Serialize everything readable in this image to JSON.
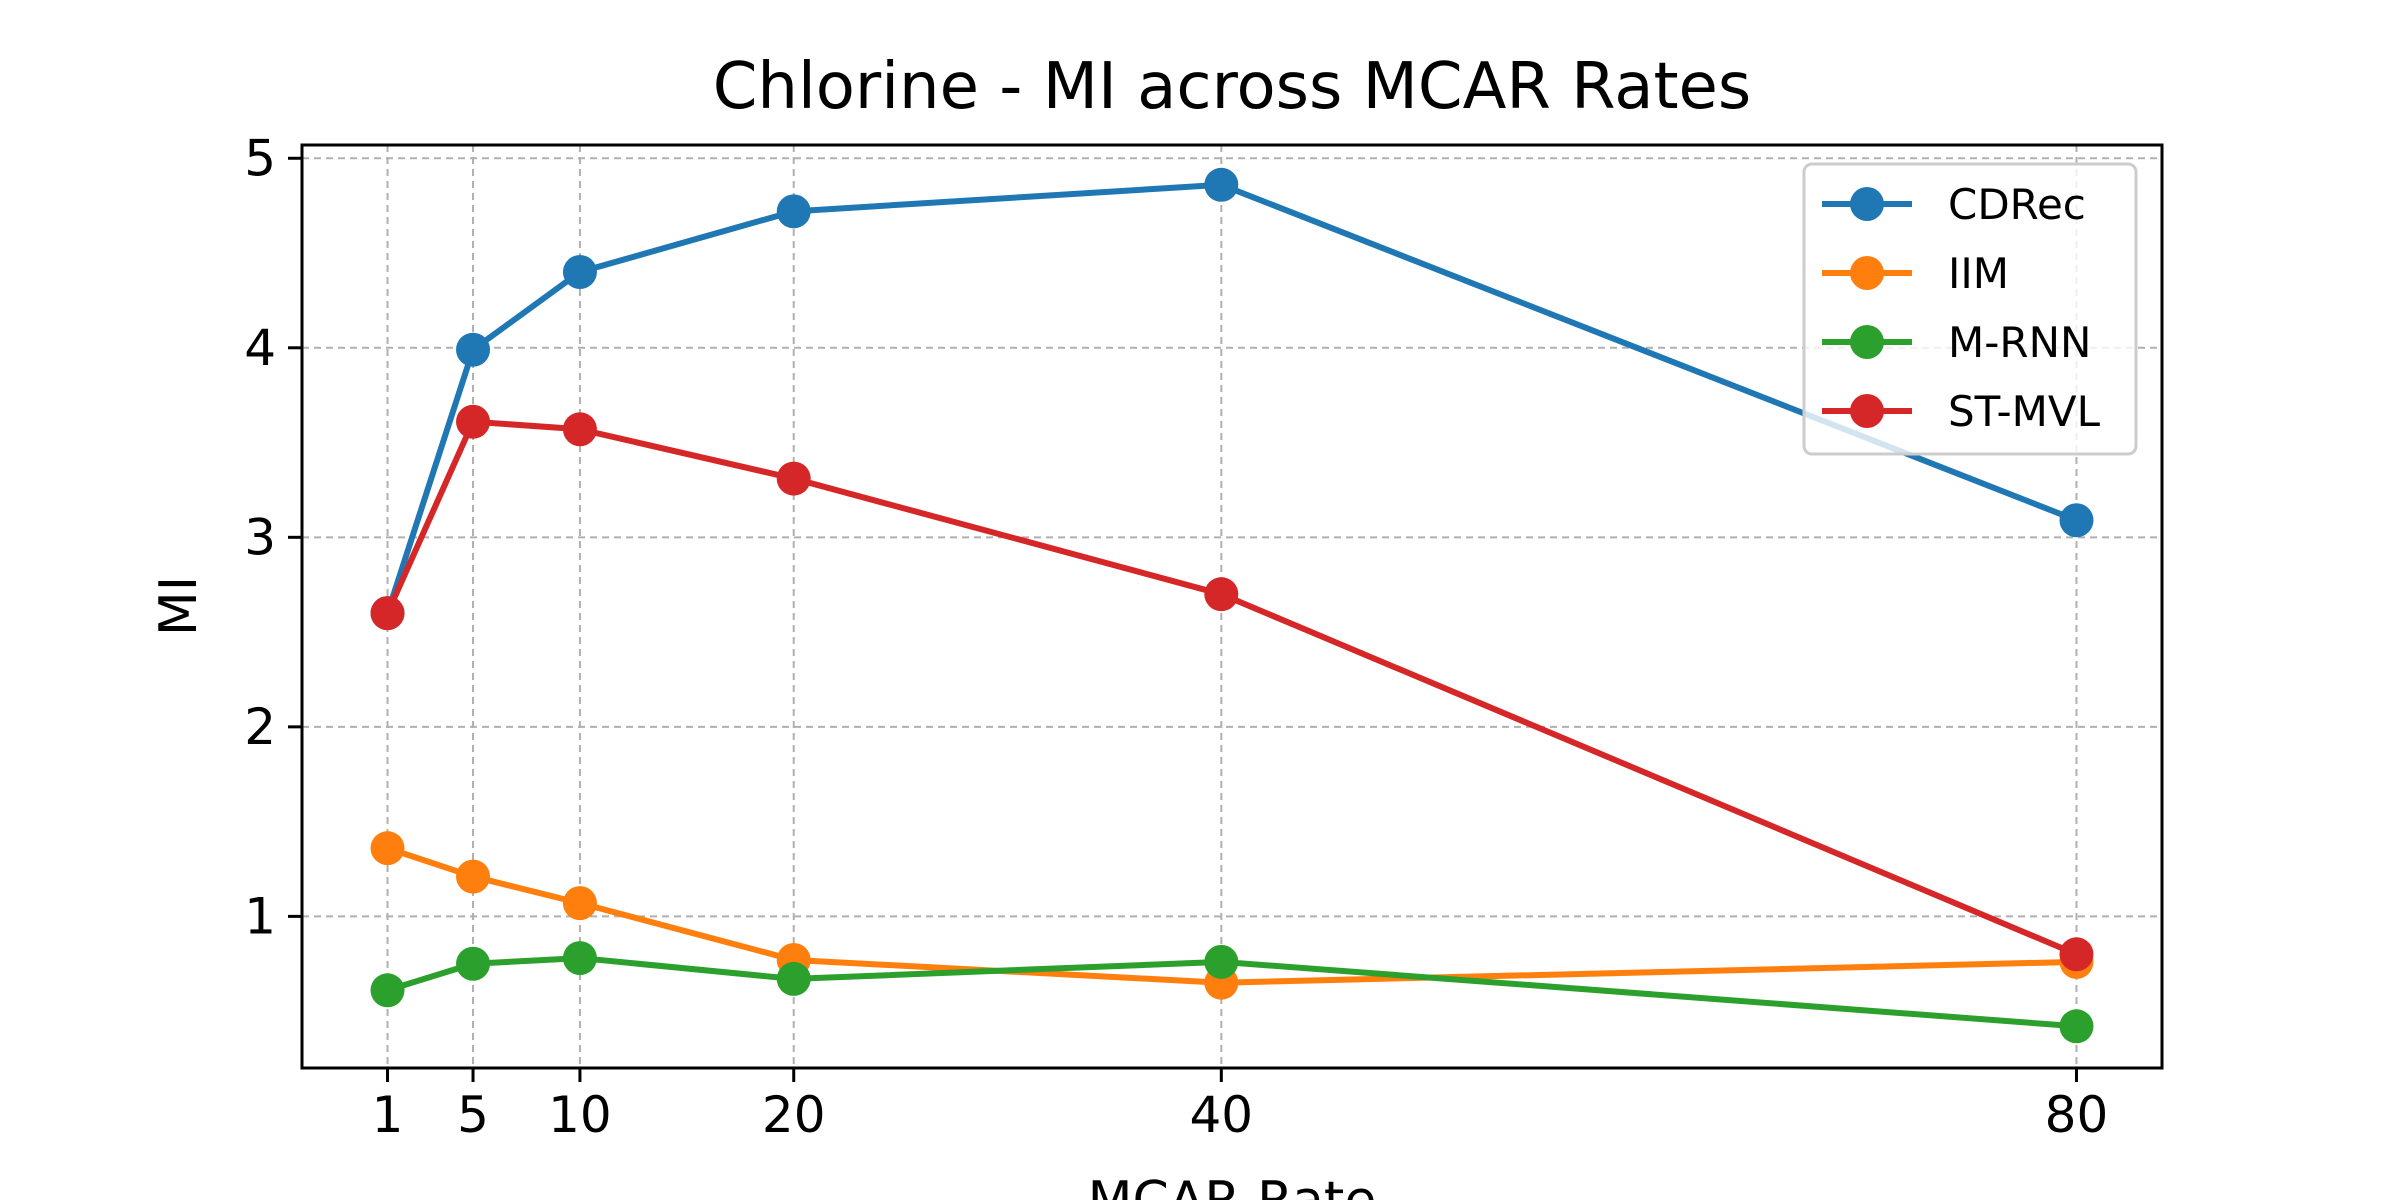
{
  "chart_data": {
    "type": "line",
    "title": "Chlorine - MI across MCAR Rates",
    "xlabel": "MCAR Rate",
    "ylabel": "MI",
    "x": [
      1,
      5,
      10,
      20,
      40,
      80
    ],
    "xticks": [
      "1",
      "5",
      "10",
      "20",
      "40",
      "80"
    ],
    "yticks": [
      "1",
      "2",
      "3",
      "4",
      "5"
    ],
    "ylim": [
      0.2,
      5.07
    ],
    "xlim": [
      -3,
      84
    ],
    "grid": true,
    "legend_position": "top-right",
    "series": [
      {
        "name": "CDRec",
        "color": "#1f77b4",
        "values": [
          2.6,
          3.99,
          4.4,
          4.72,
          4.86,
          3.09
        ]
      },
      {
        "name": "IIM",
        "color": "#ff7f0e",
        "values": [
          1.36,
          1.21,
          1.07,
          0.77,
          0.65,
          0.76
        ]
      },
      {
        "name": "M-RNN",
        "color": "#2ca02c",
        "values": [
          0.61,
          0.75,
          0.78,
          0.67,
          0.76,
          0.42
        ]
      },
      {
        "name": "ST-MVL",
        "color": "#d62728",
        "values": [
          2.6,
          3.61,
          3.57,
          3.31,
          2.7,
          0.8
        ]
      }
    ]
  }
}
